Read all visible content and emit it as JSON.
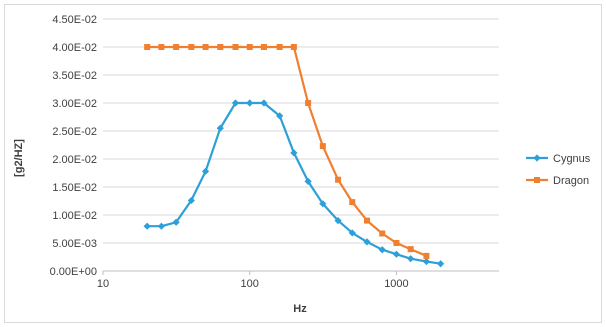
{
  "chart_data": {
    "type": "line",
    "xlabel": "Hz",
    "ylabel": "[g2/HZ]",
    "x_scale": "log",
    "xlim": [
      10,
      5000
    ],
    "ylim": [
      0,
      0.045
    ],
    "x_ticks": [
      10,
      100,
      1000
    ],
    "x_tick_labels": [
      "10",
      "100",
      "1000"
    ],
    "y_ticks": [
      0,
      0.005,
      0.01,
      0.015,
      0.02,
      0.025,
      0.03,
      0.035,
      0.04,
      0.045
    ],
    "y_tick_labels": [
      "0.00E+00",
      "5.00E-03",
      "1.00E-02",
      "1.50E-02",
      "2.00E-02",
      "2.50E-02",
      "3.00E-02",
      "3.50E-02",
      "4.00E-02",
      "4.50E-02"
    ],
    "grid": "horizontal",
    "legend_position": "right",
    "series": [
      {
        "name": "Cygnus",
        "color": "#2e9fd8",
        "marker": "diamond",
        "x": [
          20,
          25,
          31.5,
          40,
          50,
          63,
          80,
          100,
          125,
          160,
          200,
          250,
          315,
          400,
          500,
          630,
          800,
          1000,
          1250,
          1600,
          2000
        ],
        "y": [
          0.008,
          0.008,
          0.0087,
          0.0126,
          0.0178,
          0.0255,
          0.03,
          0.03,
          0.03,
          0.0277,
          0.0211,
          0.016,
          0.012,
          0.009,
          0.0068,
          0.0052,
          0.0038,
          0.003,
          0.0022,
          0.0017,
          0.0013
        ]
      },
      {
        "name": "Dragon",
        "color": "#f07f2f",
        "marker": "square",
        "x": [
          20,
          25,
          31.5,
          40,
          50,
          63,
          80,
          100,
          125,
          160,
          200,
          250,
          315,
          400,
          500,
          630,
          800,
          1000,
          1250,
          1600
        ],
        "y": [
          0.04,
          0.04,
          0.04,
          0.04,
          0.04,
          0.04,
          0.04,
          0.04,
          0.04,
          0.04,
          0.04,
          0.03,
          0.0223,
          0.0163,
          0.0123,
          0.009,
          0.0067,
          0.005,
          0.0039,
          0.0027
        ]
      }
    ]
  }
}
